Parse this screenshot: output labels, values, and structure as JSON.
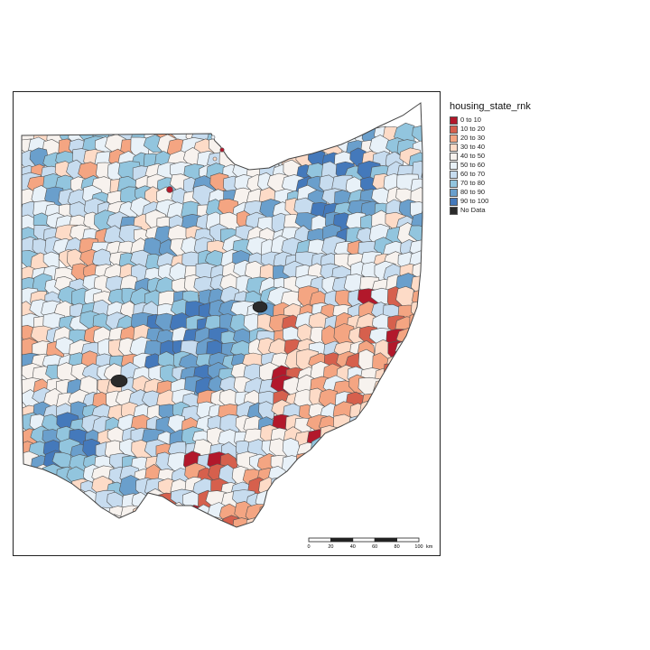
{
  "legend": {
    "title": "housing_state_rnk",
    "items": [
      {
        "label": "0 to 10",
        "color": "#b2182b"
      },
      {
        "label": "10 to 20",
        "color": "#d6604d"
      },
      {
        "label": "20 to 30",
        "color": "#f4a582"
      },
      {
        "label": "30 to 40",
        "color": "#fddbc7"
      },
      {
        "label": "40 to 50",
        "color": "#f7f2ee"
      },
      {
        "label": "50 to 60",
        "color": "#e8f1f8"
      },
      {
        "label": "60 to 70",
        "color": "#c7dcef"
      },
      {
        "label": "70 to 80",
        "color": "#92c5de"
      },
      {
        "label": "80 to 90",
        "color": "#6a9fcc"
      },
      {
        "label": "90 to 100",
        "color": "#4479bb"
      },
      {
        "label": "No Data",
        "color": "#2b2b2b"
      }
    ]
  },
  "scale_bar": {
    "ticks": [
      "0",
      "20",
      "40",
      "60",
      "80",
      "100"
    ],
    "unit": "km"
  },
  "colors": {
    "border": "#555555",
    "frame": "#222222"
  }
}
